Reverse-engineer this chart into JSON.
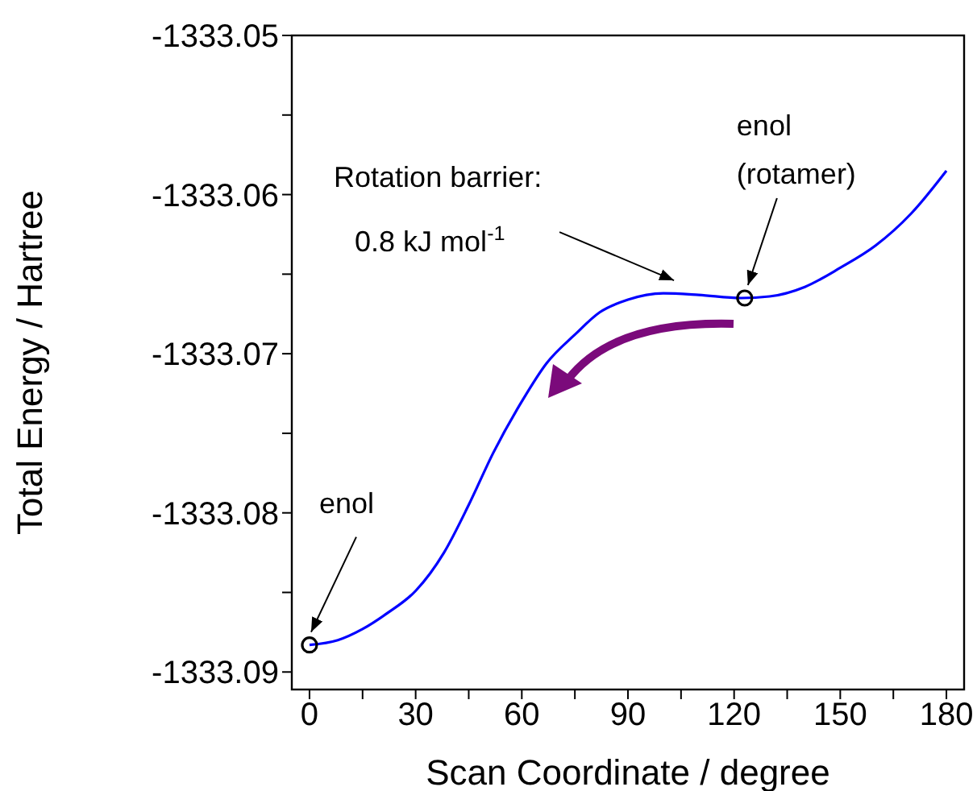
{
  "chart_data": {
    "type": "line",
    "xlabel": "Scan Coordinate / degree",
    "ylabel": "Total Energy / Hartree",
    "xlim": [
      -5,
      185
    ],
    "xticks": [
      0,
      {
        "value": 15,
        "label": null
      },
      30,
      {
        "value": 45,
        "label": null
      },
      60,
      {
        "value": 75,
        "label": null
      },
      90,
      {
        "value": 105,
        "label": null
      },
      120,
      {
        "value": 135,
        "label": null
      },
      150,
      {
        "value": 165,
        "label": null
      },
      180
    ],
    "ylim": [
      -1333.0911,
      -1333.05
    ],
    "yticks": [
      -1333.09,
      {
        "value": -1333.085,
        "label": null
      },
      -1333.08,
      {
        "value": -1333.075,
        "label": null
      },
      -1333.07,
      {
        "value": -1333.065,
        "label": null
      },
      -1333.06,
      {
        "value": -1333.055,
        "label": null
      },
      -1333.05
    ],
    "grid": false,
    "legend": false,
    "line_style": "solid",
    "series": [
      {
        "color": "#0000ff",
        "marker": "none",
        "x": [
          0,
          8,
          15,
          22,
          30,
          38,
          45,
          52,
          60,
          67,
          75,
          82,
          90,
          100,
          110,
          122,
          130,
          140,
          150,
          160,
          170,
          180
        ],
        "values": [
          -1333.0883,
          -1333.088,
          -1333.0873,
          -1333.0863,
          -1333.0849,
          -1333.0825,
          -1333.0795,
          -1333.0762,
          -1333.073,
          -1333.0706,
          -1333.0688,
          -1333.0674,
          -1333.0666,
          -1333.0662,
          -1333.0663,
          -1333.0665,
          -1333.0664,
          -1333.0658,
          -1333.0646,
          -1333.0632,
          -1333.0612,
          -1333.0585
        ]
      },
      {
        "type": "scatter",
        "color": "#000000",
        "marker": "circle",
        "x": [
          0,
          123
        ],
        "values": [
          -1333.0883,
          -1333.0665
        ]
      }
    ],
    "annotations": [
      {
        "text": "Rotation barrier:\n0.8 kJ mol$^{-1}$",
        "x": 103,
        "y": -1333.0662
      },
      {
        "text": "enol\n(rotamer)",
        "x": 123,
        "y": -1333.0665
      },
      {
        "text": "enol",
        "x": 0,
        "y": -1333.0883
      }
    ]
  }
}
